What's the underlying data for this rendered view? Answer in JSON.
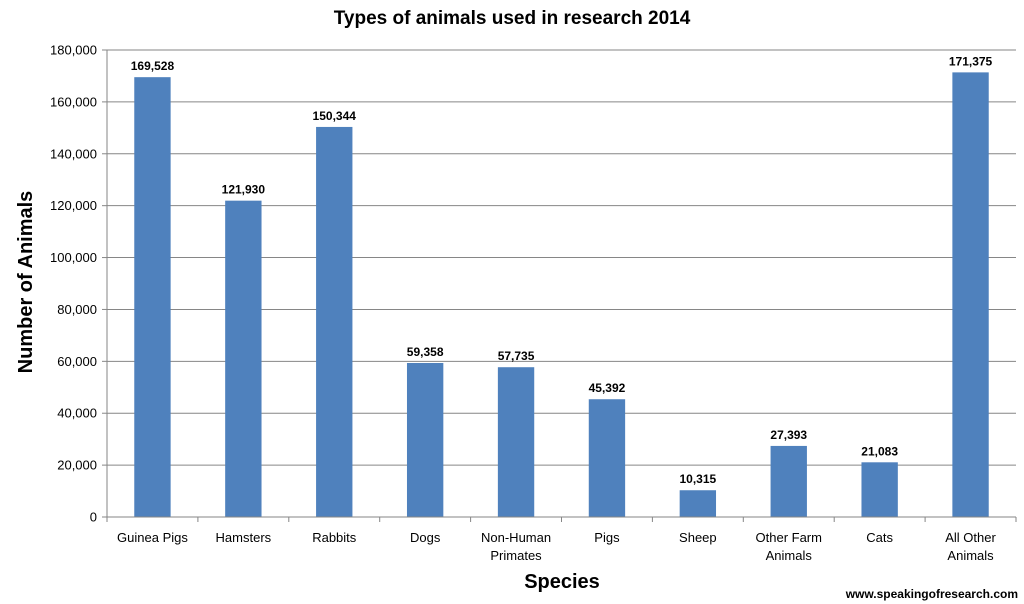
{
  "chart_data": {
    "type": "bar",
    "title": "Types of animals used in research 2014",
    "xlabel": "Species",
    "ylabel": "Number of Animals",
    "categories": [
      [
        "Guinea Pigs"
      ],
      [
        "Hamsters"
      ],
      [
        "Rabbits"
      ],
      [
        "Dogs"
      ],
      [
        "Non-Human",
        "Primates"
      ],
      [
        "Pigs"
      ],
      [
        "Sheep"
      ],
      [
        "Other Farm",
        "Animals"
      ],
      [
        "Cats"
      ],
      [
        "All Other",
        "Animals"
      ]
    ],
    "values": [
      169528,
      121930,
      150344,
      59358,
      57735,
      45392,
      10315,
      27393,
      21083,
      171375
    ],
    "data_labels": [
      "169,528",
      "121,930",
      "150,344",
      "59,358",
      "57,735",
      "45,392",
      "10,315",
      "27,393",
      "21,083",
      "171,375"
    ],
    "ylim": [
      0,
      180000
    ],
    "yticks": [
      0,
      20000,
      40000,
      60000,
      80000,
      100000,
      120000,
      140000,
      160000,
      180000
    ],
    "ytick_labels": [
      "0",
      "20,000",
      "40,000",
      "60,000",
      "80,000",
      "100,000",
      "120,000",
      "140,000",
      "160,000",
      "180,000"
    ],
    "grid": true,
    "legend": "none",
    "bar_color": "#4f81bd",
    "grid_color": "#868686"
  },
  "watermark": "www.speakingofresearch.com"
}
